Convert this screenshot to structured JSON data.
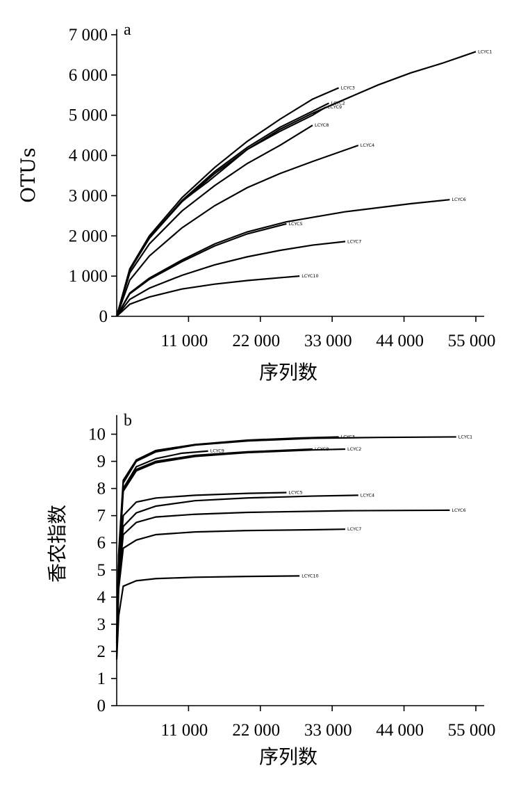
{
  "chart_data": [
    {
      "type": "line",
      "panel_label": "a",
      "title": "",
      "xlabel": "序列数",
      "ylabel": "OTUs",
      "xlim": [
        0,
        55000
      ],
      "ylim": [
        0,
        7000
      ],
      "x_ticks": [
        11000,
        22000,
        33000,
        44000,
        55000
      ],
      "x_tick_labels": [
        "11 000",
        "22 000",
        "33 000",
        "44 000",
        "55 000"
      ],
      "y_ticks": [
        0,
        1000,
        2000,
        3000,
        4000,
        5000,
        6000,
        7000
      ],
      "y_tick_labels": [
        "0",
        "1 000",
        "2 000",
        "3 000",
        "4 000",
        "5 000",
        "6 000",
        "7 000"
      ],
      "grid": false,
      "series": [
        {
          "name": "LCYC1",
          "points": [
            [
              0,
              0
            ],
            [
              2000,
              1150
            ],
            [
              5000,
              1950
            ],
            [
              10000,
              2850
            ],
            [
              15000,
              3550
            ],
            [
              20000,
              4150
            ],
            [
              25000,
              4650
            ],
            [
              30000,
              5050
            ],
            [
              35000,
              5400
            ],
            [
              40000,
              5750
            ],
            [
              45000,
              6050
            ],
            [
              50000,
              6300
            ],
            [
              55000,
              6580
            ]
          ]
        },
        {
          "name": "LCYC3",
          "points": [
            [
              0,
              0
            ],
            [
              2000,
              1180
            ],
            [
              5000,
              2000
            ],
            [
              10000,
              2950
            ],
            [
              15000,
              3700
            ],
            [
              20000,
              4350
            ],
            [
              25000,
              4900
            ],
            [
              30000,
              5400
            ],
            [
              34000,
              5680
            ]
          ]
        },
        {
          "name": "LCYC2",
          "points": [
            [
              0,
              0
            ],
            [
              2000,
              1160
            ],
            [
              5000,
              1950
            ],
            [
              10000,
              2880
            ],
            [
              15000,
              3600
            ],
            [
              20000,
              4200
            ],
            [
              25000,
              4700
            ],
            [
              30000,
              5100
            ],
            [
              32500,
              5300
            ]
          ]
        },
        {
          "name": "LCYC9",
          "points": [
            [
              0,
              0
            ],
            [
              2000,
              1150
            ],
            [
              5000,
              1940
            ],
            [
              10000,
              2860
            ],
            [
              14000,
              3350
            ],
            [
              20000,
              4150
            ],
            [
              25000,
              4600
            ],
            [
              30000,
              5000
            ],
            [
              32000,
              5200
            ]
          ]
        },
        {
          "name": "LCYC8",
          "points": [
            [
              0,
              0
            ],
            [
              2000,
              1080
            ],
            [
              5000,
              1800
            ],
            [
              10000,
              2620
            ],
            [
              15000,
              3250
            ],
            [
              20000,
              3800
            ],
            [
              25000,
              4250
            ],
            [
              30000,
              4750
            ]
          ]
        },
        {
          "name": "LCYC4",
          "points": [
            [
              0,
              0
            ],
            [
              2000,
              900
            ],
            [
              5000,
              1500
            ],
            [
              10000,
              2200
            ],
            [
              15000,
              2750
            ],
            [
              20000,
              3200
            ],
            [
              25000,
              3550
            ],
            [
              30000,
              3850
            ],
            [
              37000,
              4250
            ]
          ]
        },
        {
          "name": "LCYC6",
          "points": [
            [
              0,
              0
            ],
            [
              2000,
              580
            ],
            [
              5000,
              950
            ],
            [
              10000,
              1400
            ],
            [
              15000,
              1800
            ],
            [
              20000,
              2100
            ],
            [
              26000,
              2350
            ],
            [
              35000,
              2600
            ],
            [
              45000,
              2800
            ],
            [
              51000,
              2900
            ]
          ]
        },
        {
          "name": "LCYC5",
          "points": [
            [
              0,
              0
            ],
            [
              2000,
              560
            ],
            [
              5000,
              920
            ],
            [
              10000,
              1360
            ],
            [
              15000,
              1750
            ],
            [
              20000,
              2050
            ],
            [
              26000,
              2300
            ]
          ]
        },
        {
          "name": "LCYC7",
          "points": [
            [
              0,
              0
            ],
            [
              2000,
              420
            ],
            [
              5000,
              700
            ],
            [
              10000,
              1020
            ],
            [
              15000,
              1280
            ],
            [
              20000,
              1480
            ],
            [
              25000,
              1640
            ],
            [
              30000,
              1770
            ],
            [
              35000,
              1860
            ]
          ]
        },
        {
          "name": "LCYC10",
          "points": [
            [
              0,
              0
            ],
            [
              2000,
              300
            ],
            [
              5000,
              480
            ],
            [
              10000,
              680
            ],
            [
              15000,
              800
            ],
            [
              20000,
              890
            ],
            [
              25000,
              960
            ],
            [
              28000,
              1000
            ]
          ]
        }
      ]
    },
    {
      "type": "line",
      "panel_label": "b",
      "title": "",
      "xlabel": "序列数",
      "ylabel": "香农指数",
      "xlim": [
        0,
        55000
      ],
      "ylim": [
        0,
        10.5
      ],
      "x_ticks": [
        11000,
        22000,
        33000,
        44000,
        55000
      ],
      "x_tick_labels": [
        "11 000",
        "22 000",
        "33 000",
        "44 000",
        "55 000"
      ],
      "y_ticks": [
        0,
        1,
        2,
        3,
        4,
        5,
        6,
        7,
        8,
        9,
        10
      ],
      "y_tick_labels": [
        "0",
        "1",
        "2",
        "3",
        "4",
        "5",
        "6",
        "7",
        "8",
        "9",
        "10"
      ],
      "grid": false,
      "series": [
        {
          "name": "LCYC1",
          "points": [
            [
              0,
              2.5
            ],
            [
              300,
              5.5
            ],
            [
              1000,
              8.2
            ],
            [
              3000,
              9.0
            ],
            [
              6000,
              9.35
            ],
            [
              12000,
              9.6
            ],
            [
              20000,
              9.75
            ],
            [
              30000,
              9.85
            ],
            [
              40000,
              9.88
            ],
            [
              52000,
              9.9
            ]
          ]
        },
        {
          "name": "LCYC3",
          "points": [
            [
              0,
              2.5
            ],
            [
              300,
              5.6
            ],
            [
              1000,
              8.3
            ],
            [
              3000,
              9.05
            ],
            [
              6000,
              9.4
            ],
            [
              12000,
              9.62
            ],
            [
              20000,
              9.78
            ],
            [
              28000,
              9.86
            ],
            [
              34000,
              9.9
            ]
          ]
        },
        {
          "name": "LCYC9",
          "points": [
            [
              0,
              2.4
            ],
            [
              300,
              5.4
            ],
            [
              1000,
              8.0
            ],
            [
              3000,
              8.8
            ],
            [
              6000,
              9.1
            ],
            [
              10000,
              9.3
            ],
            [
              14000,
              9.38
            ]
          ]
        },
        {
          "name": "LCYC8",
          "points": [
            [
              0,
              2.3
            ],
            [
              300,
              5.2
            ],
            [
              1000,
              8.0
            ],
            [
              3000,
              8.7
            ],
            [
              6000,
              9.0
            ],
            [
              12000,
              9.22
            ],
            [
              20000,
              9.35
            ],
            [
              30000,
              9.45
            ]
          ]
        },
        {
          "name": "LCYC2",
          "points": [
            [
              0,
              2.3
            ],
            [
              300,
              5.2
            ],
            [
              1000,
              7.9
            ],
            [
              3000,
              8.65
            ],
            [
              6000,
              8.95
            ],
            [
              12000,
              9.18
            ],
            [
              20000,
              9.32
            ],
            [
              30000,
              9.42
            ],
            [
              35000,
              9.45
            ]
          ]
        },
        {
          "name": "LCYC5",
          "points": [
            [
              0,
              2.0
            ],
            [
              300,
              4.8
            ],
            [
              1000,
              7.0
            ],
            [
              3000,
              7.5
            ],
            [
              6000,
              7.65
            ],
            [
              12000,
              7.75
            ],
            [
              20000,
              7.82
            ],
            [
              26000,
              7.85
            ]
          ]
        },
        {
          "name": "LCYC4",
          "points": [
            [
              0,
              2.0
            ],
            [
              300,
              4.7
            ],
            [
              1000,
              6.6
            ],
            [
              3000,
              7.1
            ],
            [
              6000,
              7.35
            ],
            [
              12000,
              7.55
            ],
            [
              20000,
              7.65
            ],
            [
              30000,
              7.72
            ],
            [
              37000,
              7.75
            ]
          ]
        },
        {
          "name": "LCYC6",
          "points": [
            [
              0,
              1.9
            ],
            [
              300,
              4.6
            ],
            [
              1000,
              6.3
            ],
            [
              3000,
              6.75
            ],
            [
              6000,
              6.95
            ],
            [
              12000,
              7.05
            ],
            [
              20000,
              7.12
            ],
            [
              35000,
              7.18
            ],
            [
              51000,
              7.2
            ]
          ]
        },
        {
          "name": "LCYC7",
          "points": [
            [
              0,
              1.8
            ],
            [
              300,
              4.3
            ],
            [
              1000,
              5.8
            ],
            [
              3000,
              6.1
            ],
            [
              6000,
              6.3
            ],
            [
              12000,
              6.4
            ],
            [
              20000,
              6.45
            ],
            [
              30000,
              6.48
            ],
            [
              35000,
              6.5
            ]
          ]
        },
        {
          "name": "LCYC10",
          "points": [
            [
              0,
              1.7
            ],
            [
              300,
              3.3
            ],
            [
              1000,
              4.4
            ],
            [
              3000,
              4.6
            ],
            [
              6000,
              4.68
            ],
            [
              12000,
              4.73
            ],
            [
              20000,
              4.76
            ],
            [
              28000,
              4.78
            ]
          ]
        }
      ]
    }
  ]
}
